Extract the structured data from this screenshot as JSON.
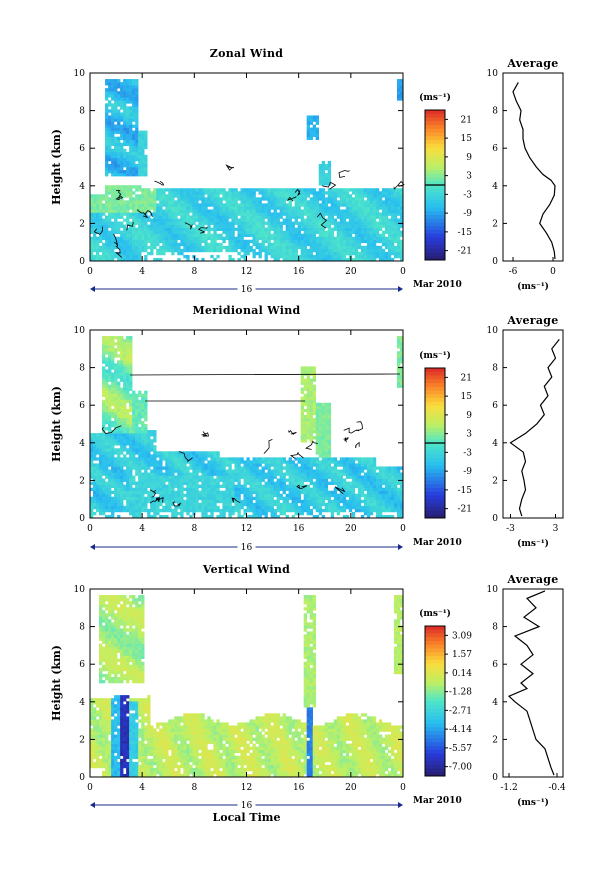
{
  "chart_data": [
    {
      "type": "heatmap",
      "title": "Zonal Wind",
      "ylabel": "Height (km)",
      "xlabel": "",
      "x_ticks": [
        "0",
        "4",
        "8",
        "12",
        "16",
        "20",
        "0"
      ],
      "y_ticks": [
        "0",
        "2",
        "4",
        "6",
        "8",
        "10"
      ],
      "xlim": [
        0,
        24
      ],
      "ylim": [
        0,
        10
      ],
      "date_marker": "16",
      "date_label": "Mar 2010",
      "colorbar": {
        "unit": "(ms⁻¹)",
        "ticks": [
          "21",
          "15",
          "9",
          "3",
          "-3",
          "-9",
          "-15",
          "-21"
        ],
        "range": [
          -24,
          24
        ],
        "zero_line": 0
      },
      "profile": {
        "title": "Average",
        "xlabel": "(ms⁻¹)",
        "x_ticks": [
          "-6",
          "0"
        ],
        "xlim": [
          -7.5,
          1.5
        ],
        "y_ticks": [
          "0",
          "2",
          "4",
          "6",
          "8",
          "10"
        ],
        "heights": [
          0.1,
          0.5,
          1.0,
          1.5,
          2.0,
          2.5,
          3.0,
          3.5,
          4.0,
          4.3,
          4.6,
          5.0,
          5.5,
          6.0,
          6.5,
          7.0,
          7.5,
          8.0,
          8.5,
          9.0,
          9.5
        ],
        "values": [
          0.3,
          0.2,
          -0.2,
          -1.0,
          -2.0,
          -1.5,
          -0.5,
          0.2,
          0.3,
          -0.3,
          -1.5,
          -2.5,
          -3.5,
          -4.2,
          -4.5,
          -4.5,
          -5.0,
          -4.8,
          -5.5,
          -6.0,
          -5.2
        ]
      }
    },
    {
      "type": "heatmap",
      "title": "Meridional Wind",
      "ylabel": "Height (km)",
      "xlabel": "",
      "x_ticks": [
        "0",
        "4",
        "8",
        "12",
        "16",
        "20",
        "0"
      ],
      "y_ticks": [
        "0",
        "2",
        "4",
        "6",
        "8",
        "10"
      ],
      "xlim": [
        0,
        24
      ],
      "ylim": [
        0,
        10
      ],
      "date_marker": "16",
      "date_label": "Mar 2010",
      "colorbar": {
        "unit": "(ms⁻¹)",
        "ticks": [
          "21",
          "15",
          "9",
          "3",
          "-3",
          "-9",
          "-15",
          "-21"
        ],
        "range": [
          -24,
          24
        ],
        "zero_line": 0
      },
      "profile": {
        "title": "Average",
        "xlabel": "(ms⁻¹)",
        "x_ticks": [
          "-3",
          "3"
        ],
        "xlim": [
          -4,
          4
        ],
        "y_ticks": [
          "0",
          "2",
          "4",
          "6",
          "8",
          "10"
        ],
        "heights": [
          0.1,
          0.5,
          1.0,
          1.5,
          2.0,
          2.5,
          3.0,
          3.5,
          4.0,
          4.5,
          5.0,
          5.5,
          6.0,
          6.5,
          7.0,
          7.5,
          8.0,
          8.5,
          9.0,
          9.5
        ],
        "values": [
          -1.5,
          -1.8,
          -1.5,
          -1.0,
          -1.2,
          -1.5,
          -1.0,
          -1.3,
          -3.0,
          -1.0,
          0.5,
          1.5,
          1.0,
          2.0,
          1.5,
          2.5,
          2.0,
          3.0,
          2.5,
          3.5
        ]
      }
    },
    {
      "type": "heatmap",
      "title": "Vertical Wind",
      "ylabel": "Height (km)",
      "xlabel": "Local Time",
      "x_ticks": [
        "0",
        "4",
        "8",
        "12",
        "16",
        "20",
        "0"
      ],
      "y_ticks": [
        "0",
        "2",
        "4",
        "6",
        "8",
        "10"
      ],
      "xlim": [
        0,
        24
      ],
      "ylim": [
        0,
        10
      ],
      "date_marker": "16",
      "date_label": "Mar 2010",
      "colorbar": {
        "unit": "(ms⁻¹)",
        "ticks": [
          "3.09",
          "1.57",
          "0.14",
          "-1.28",
          "-2.71",
          "-4.14",
          "-5.57",
          "-7.00"
        ],
        "range": [
          -7.7,
          3.8
        ]
      },
      "profile": {
        "title": "Average",
        "xlabel": "(ms⁻¹)",
        "x_ticks": [
          "-1.2",
          "-0.4"
        ],
        "xlim": [
          -1.3,
          -0.3
        ],
        "y_ticks": [
          "0",
          "2",
          "4",
          "6",
          "8",
          "10"
        ],
        "heights": [
          0.1,
          0.5,
          1.0,
          1.5,
          2.0,
          2.5,
          3.0,
          3.5,
          4.0,
          4.3,
          4.7,
          5.0,
          5.5,
          6.0,
          6.5,
          7.0,
          7.5,
          8.0,
          8.5,
          9.0,
          9.5,
          9.9
        ],
        "values": [
          -0.45,
          -0.5,
          -0.55,
          -0.6,
          -0.75,
          -0.8,
          -0.85,
          -0.9,
          -1.1,
          -1.2,
          -0.9,
          -1.0,
          -0.8,
          -1.0,
          -0.8,
          -0.9,
          -1.1,
          -0.7,
          -0.95,
          -0.75,
          -0.9,
          -0.6
        ]
      }
    }
  ]
}
